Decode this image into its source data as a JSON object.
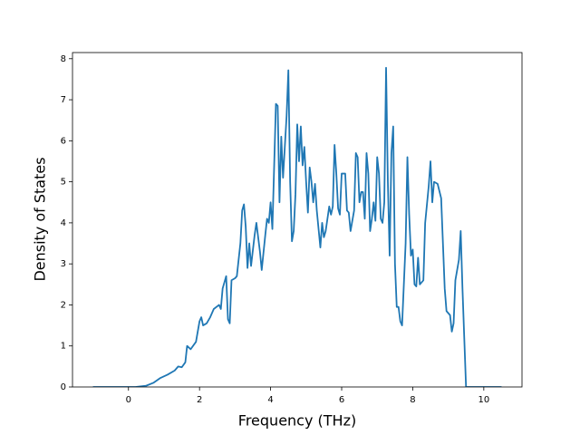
{
  "chart_data": {
    "type": "line",
    "x_label": "Frequency (THz)",
    "y_label": "Density of States",
    "color": "#1f77b4",
    "x": [
      -1,
      0.2,
      0.5,
      0.7,
      0.9,
      1.1,
      1.3,
      1.4,
      1.5,
      1.6,
      1.65,
      1.75,
      1.9,
      2.0,
      2.05,
      2.1,
      2.2,
      2.3,
      2.4,
      2.55,
      2.6,
      2.65,
      2.75,
      2.8,
      2.85,
      2.9,
      3.0,
      3.05,
      3.15,
      3.2,
      3.25,
      3.3,
      3.35,
      3.4,
      3.45,
      3.55,
      3.6,
      3.7,
      3.75,
      3.85,
      3.9,
      3.95,
      4.0,
      4.05,
      4.15,
      4.2,
      4.25,
      4.3,
      4.35,
      4.45,
      4.5,
      4.55,
      4.6,
      4.65,
      4.7,
      4.75,
      4.8,
      4.85,
      4.9,
      4.95,
      5.0,
      5.05,
      5.1,
      5.15,
      5.2,
      5.25,
      5.3,
      5.4,
      5.45,
      5.5,
      5.55,
      5.65,
      5.7,
      5.75,
      5.8,
      5.85,
      5.9,
      5.95,
      6.0,
      6.1,
      6.15,
      6.2,
      6.25,
      6.35,
      6.4,
      6.45,
      6.5,
      6.55,
      6.6,
      6.65,
      6.7,
      6.75,
      6.8,
      6.85,
      6.9,
      6.95,
      7.0,
      7.05,
      7.1,
      7.15,
      7.2,
      7.25,
      7.3,
      7.35,
      7.4,
      7.45,
      7.5,
      7.55,
      7.6,
      7.65,
      7.7,
      7.8,
      7.85,
      7.9,
      7.95,
      8.0,
      8.05,
      8.1,
      8.15,
      8.2,
      8.3,
      8.35,
      8.45,
      8.5,
      8.55,
      8.6,
      8.7,
      8.8,
      8.85,
      8.9,
      8.95,
      9.05,
      9.1,
      9.15,
      9.2,
      9.3,
      9.35,
      9.4,
      9.45,
      9.5,
      10.5
    ],
    "values": [
      0,
      0,
      0.03,
      0.1,
      0.22,
      0.3,
      0.4,
      0.5,
      0.48,
      0.6,
      1.0,
      0.92,
      1.1,
      1.6,
      1.7,
      1.5,
      1.55,
      1.7,
      1.9,
      2.0,
      1.9,
      2.4,
      2.7,
      1.65,
      1.55,
      2.6,
      2.65,
      2.7,
      3.5,
      4.3,
      4.45,
      3.9,
      2.9,
      3.5,
      2.95,
      3.7,
      4.0,
      3.3,
      2.85,
      3.7,
      4.1,
      4.0,
      4.5,
      3.85,
      6.9,
      6.85,
      4.5,
      6.1,
      5.1,
      6.6,
      7.72,
      5.0,
      3.55,
      3.8,
      4.7,
      6.4,
      5.5,
      6.35,
      5.4,
      5.85,
      5.0,
      4.25,
      5.35,
      5.0,
      4.5,
      4.95,
      4.3,
      3.4,
      4.0,
      3.65,
      3.8,
      4.4,
      4.2,
      4.4,
      5.9,
      5.2,
      4.35,
      4.2,
      5.2,
      5.2,
      4.3,
      4.25,
      3.8,
      4.3,
      5.7,
      5.6,
      4.5,
      4.75,
      4.75,
      4.1,
      5.7,
      5.2,
      3.8,
      4.1,
      4.5,
      4.05,
      5.6,
      5.2,
      4.1,
      4.0,
      4.5,
      7.78,
      5.0,
      3.2,
      5.7,
      6.35,
      3.0,
      1.95,
      1.95,
      1.6,
      1.5,
      3.5,
      5.6,
      4.2,
      3.2,
      3.35,
      2.5,
      2.45,
      3.15,
      2.5,
      2.6,
      4.0,
      4.9,
      5.5,
      4.5,
      5.0,
      4.95,
      4.6,
      3.5,
      2.4,
      1.85,
      1.75,
      1.35,
      1.55,
      2.6,
      3.1,
      3.8,
      2.4,
      1.2,
      0,
      0
    ],
    "xlim": [
      -1.575,
      11.075
    ],
    "xticks": [
      0,
      2,
      4,
      6,
      8,
      10
    ],
    "ylim": [
      0,
      8.15
    ],
    "yticks": [
      0,
      1,
      2,
      3,
      4,
      5,
      6,
      7,
      8
    ]
  }
}
